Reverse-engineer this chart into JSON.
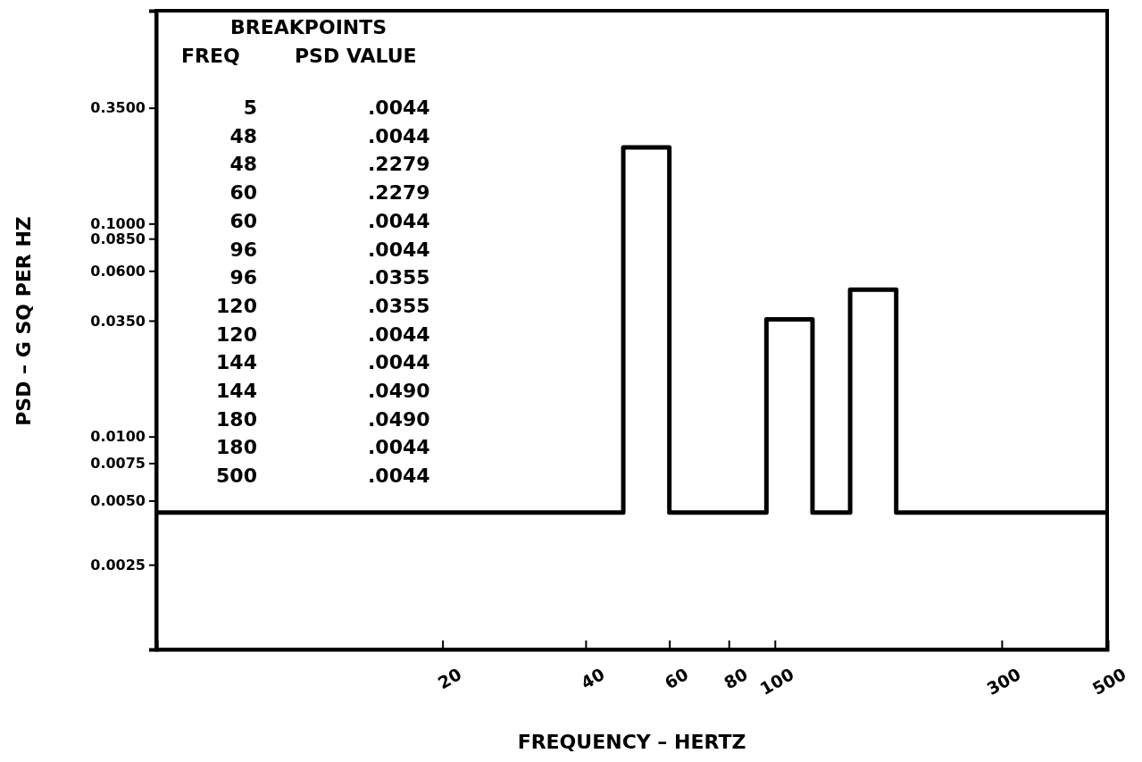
{
  "chart_data": {
    "type": "line",
    "xlabel": "FREQUENCY  –  HERTZ",
    "ylabel": "PSD  –  G SQ PER HZ",
    "annotations": [
      "BREAKPOINTS",
      "FREQ",
      "PSD VALUE",
      "5",
      ".0044",
      "48",
      ".0044",
      "48",
      ".2279",
      "60",
      ".2279",
      "60",
      ".0044",
      "96",
      ".0044",
      "96",
      ".0355",
      "120",
      ".0355",
      "120",
      ".0044",
      "144",
      ".0044",
      "144",
      ".0490",
      "180",
      ".0490",
      "180",
      ".0044",
      "500",
      ".0044"
    ],
    "x": [
      5,
      48,
      48,
      60,
      60,
      96,
      96,
      120,
      120,
      144,
      144,
      180,
      180,
      500
    ],
    "series": [
      {
        "color": "#000000",
        "values": [
          0.0044,
          0.0044,
          0.2279,
          0.2279,
          0.0044,
          0.0044,
          0.0355,
          0.0355,
          0.0044,
          0.0044,
          0.049,
          0.049,
          0.0044,
          0.0044
        ]
      }
    ],
    "log": "xy",
    "xlim": [
      5,
      500
    ],
    "ylim": [
      0.001,
      1
    ],
    "xticks": [
      20,
      40,
      60,
      80,
      100,
      300,
      500
    ],
    "yticks": [
      {
        "value": 0.35,
        "label": "0.3500"
      },
      {
        "value": 0.1,
        "label": "0.1000"
      },
      {
        "value": 0.085,
        "label": "0.0850"
      },
      {
        "value": 0.06,
        "label": "0.0600"
      },
      {
        "value": 0.035,
        "label": "0.0350"
      },
      {
        "value": 0.01,
        "label": "0.0100"
      },
      {
        "value": 0.0075,
        "label": "0.0075"
      },
      {
        "value": 0.005,
        "label": "0.0050"
      },
      {
        "value": 0.0025,
        "label": "0.0025"
      }
    ],
    "marker": "none",
    "line_style": "solid"
  }
}
